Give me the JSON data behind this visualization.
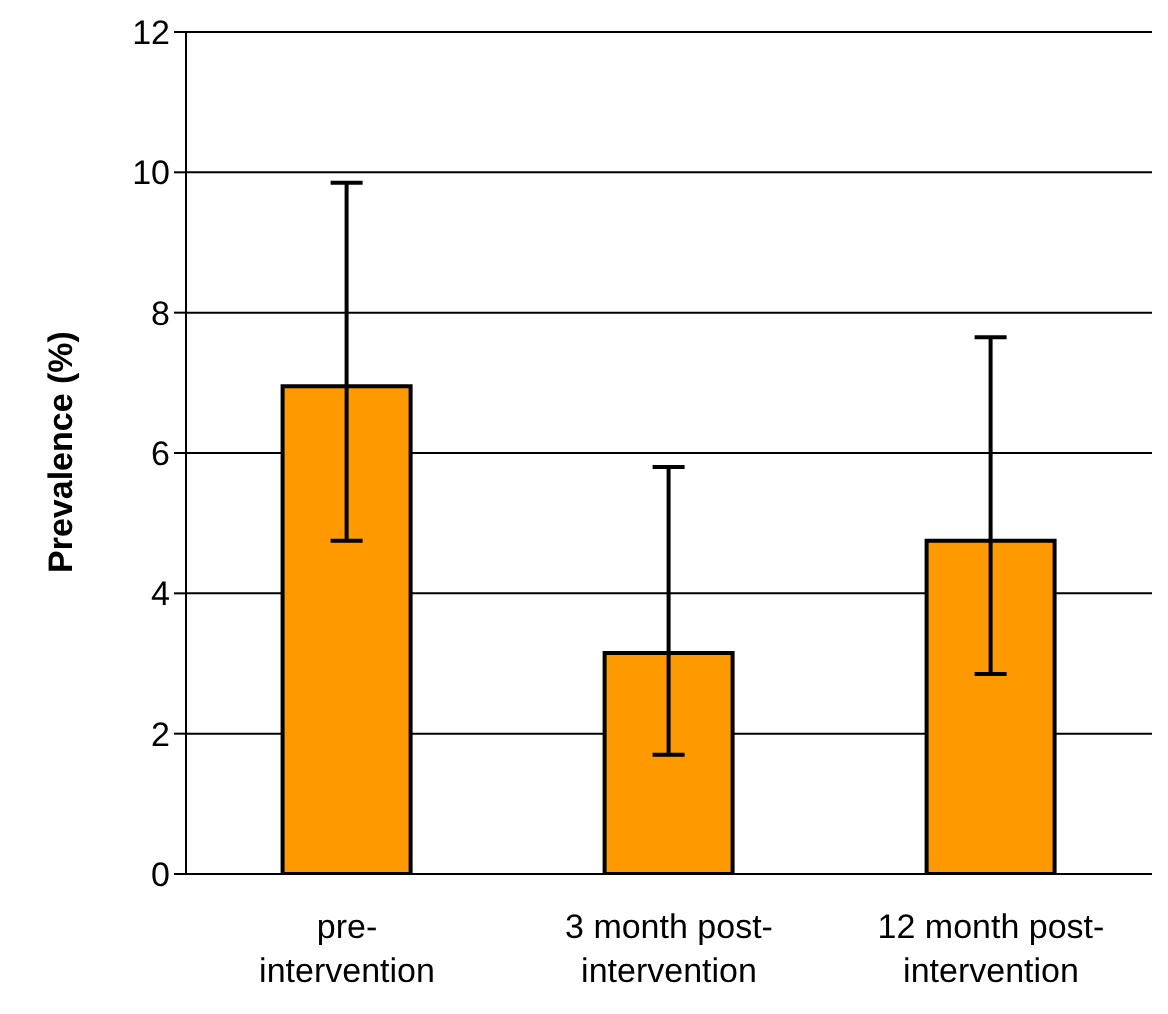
{
  "chart_data": {
    "type": "bar",
    "ylabel": "Prevalence (%)",
    "categories": [
      "pre-intervention",
      "3 month post-intervention",
      "12 month post-intervention"
    ],
    "values": [
      6.95,
      3.15,
      4.75
    ],
    "errors": [
      [
        4.75,
        9.85
      ],
      [
        1.7,
        5.8
      ],
      [
        2.85,
        7.65
      ]
    ],
    "color": "#ff9900",
    "ylim": [
      0,
      12
    ],
    "yticks": [
      0,
      2,
      4,
      6,
      8,
      10,
      12
    ],
    "grid": "y",
    "legend": false
  }
}
